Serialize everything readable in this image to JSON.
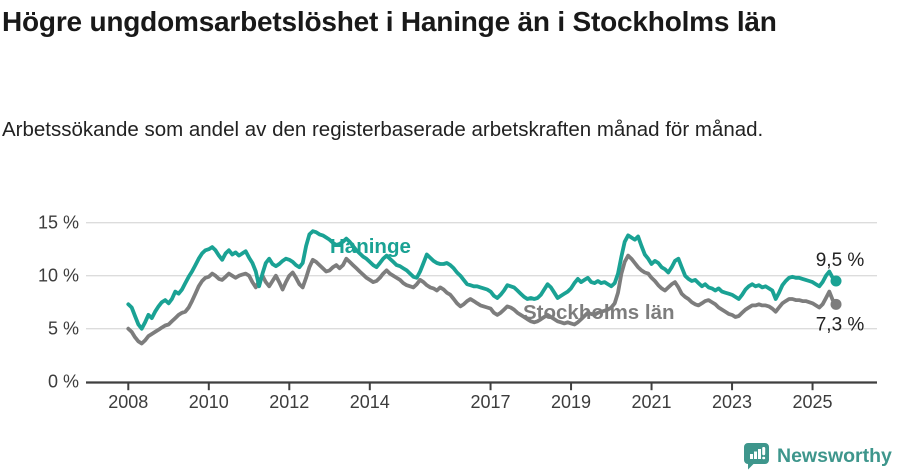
{
  "header": {
    "title": "Högre ungdomsarbetslöshet i Haninge än i Stockholms län",
    "subtitle": "Arbetssökande som andel av den registerbaserade arbetskraften månad för månad."
  },
  "chart_data": {
    "type": "line",
    "title": "Högre ungdomsarbetslöshet i Haninge än i Stockholms län",
    "xlabel": "",
    "ylabel": "",
    "unit": "%",
    "x_start_year": 2008,
    "x_step_months": 1,
    "ylim": [
      0,
      16
    ],
    "grid": true,
    "y_ticks": [
      {
        "label": "0 %",
        "value": 0
      },
      {
        "label": "5 %",
        "value": 5
      },
      {
        "label": "10 %",
        "value": 10
      },
      {
        "label": "15 %",
        "value": 15
      }
    ],
    "x_ticks": [
      {
        "label": "2008",
        "year": 2008
      },
      {
        "label": "2010",
        "year": 2010
      },
      {
        "label": "2012",
        "year": 2012
      },
      {
        "label": "2014",
        "year": 2014
      },
      {
        "label": "2017",
        "year": 2017
      },
      {
        "label": "2019",
        "year": 2019
      },
      {
        "label": "2021",
        "year": 2021
      },
      {
        "label": "2023",
        "year": 2023
      },
      {
        "label": "2025",
        "year": 2025
      }
    ],
    "series": [
      {
        "name": "Haninge",
        "color": "#1aa294",
        "end_label": "9,5 %",
        "end_value": 9.5,
        "values": [
          7.3,
          7.0,
          6.2,
          5.4,
          5.0,
          5.6,
          6.3,
          6.0,
          6.6,
          7.1,
          7.5,
          7.7,
          7.4,
          7.8,
          8.5,
          8.3,
          8.7,
          9.3,
          9.9,
          10.4,
          11.0,
          11.6,
          12.1,
          12.4,
          12.5,
          12.7,
          12.4,
          11.9,
          11.5,
          12.1,
          12.4,
          12.0,
          12.2,
          11.9,
          12.1,
          12.3,
          11.7,
          11.2,
          10.4,
          9.0,
          10.2,
          11.2,
          11.6,
          11.1,
          10.9,
          11.1,
          11.4,
          11.6,
          11.5,
          11.3,
          11.0,
          10.8,
          11.2,
          12.8,
          13.9,
          14.2,
          14.1,
          13.9,
          13.8,
          13.6,
          13.4,
          13.1,
          12.9,
          13.0,
          13.2,
          13.5,
          13.2,
          12.8,
          12.4,
          12.1,
          11.8,
          11.6,
          11.3,
          11.0,
          10.8,
          11.2,
          11.6,
          11.9,
          11.6,
          11.3,
          11.0,
          10.9,
          10.7,
          10.5,
          10.2,
          9.9,
          9.8,
          10.4,
          11.2,
          12.0,
          11.7,
          11.4,
          11.2,
          11.1,
          11.1,
          11.2,
          11.0,
          10.7,
          10.3,
          10.0,
          9.6,
          9.2,
          9.1,
          9.0,
          9.0,
          8.9,
          8.8,
          8.7,
          8.5,
          8.1,
          7.9,
          8.2,
          8.6,
          9.1,
          9.0,
          8.9,
          8.6,
          8.3,
          8.0,
          7.8,
          7.9,
          7.8,
          7.9,
          8.2,
          8.7,
          9.2,
          8.9,
          8.4,
          7.9,
          8.1,
          8.3,
          8.5,
          8.8,
          9.3,
          9.7,
          9.4,
          9.6,
          9.8,
          9.4,
          9.3,
          9.5,
          9.3,
          9.4,
          9.2,
          9.0,
          9.3,
          10.2,
          11.8,
          13.2,
          13.8,
          13.6,
          13.4,
          13.7,
          12.8,
          12.0,
          11.6,
          11.1,
          11.4,
          11.2,
          10.8,
          10.6,
          10.3,
          10.8,
          11.4,
          11.6,
          10.8,
          10.0,
          9.7,
          9.5,
          9.6,
          9.3,
          9.0,
          9.2,
          8.9,
          8.8,
          8.6,
          8.8,
          8.5,
          8.4,
          8.3,
          8.2,
          8.0,
          7.8,
          8.2,
          8.7,
          9.0,
          9.2,
          9.0,
          9.1,
          8.9,
          9.0,
          8.8,
          8.6,
          7.8,
          8.4,
          9.1,
          9.5,
          9.8,
          9.9,
          9.8,
          9.8,
          9.7,
          9.6,
          9.5,
          9.4,
          9.2,
          9.0,
          9.4,
          10.0,
          10.4,
          9.8,
          9.5
        ]
      },
      {
        "name": "Stockholms län",
        "color": "#7d7d7d",
        "end_label": "7,3 %",
        "end_value": 7.3,
        "values": [
          5.0,
          4.7,
          4.2,
          3.8,
          3.6,
          3.9,
          4.3,
          4.5,
          4.7,
          4.9,
          5.1,
          5.3,
          5.4,
          5.7,
          6.0,
          6.3,
          6.5,
          6.6,
          7.0,
          7.6,
          8.3,
          9.0,
          9.5,
          9.8,
          9.9,
          10.2,
          10.0,
          9.7,
          9.6,
          9.9,
          10.2,
          10.0,
          9.8,
          10.0,
          10.1,
          10.2,
          10.0,
          9.4,
          8.9,
          9.5,
          10.0,
          9.4,
          9.0,
          9.5,
          10.0,
          9.4,
          8.7,
          9.4,
          10.0,
          10.3,
          9.8,
          9.2,
          8.9,
          9.8,
          10.8,
          11.5,
          11.3,
          11.0,
          10.7,
          10.4,
          10.5,
          10.8,
          11.0,
          10.7,
          11.0,
          11.6,
          11.3,
          11.0,
          10.7,
          10.4,
          10.1,
          9.8,
          9.6,
          9.4,
          9.5,
          9.8,
          10.2,
          10.5,
          10.2,
          10.0,
          9.8,
          9.6,
          9.3,
          9.1,
          9.0,
          8.9,
          9.2,
          9.6,
          9.4,
          9.1,
          8.9,
          8.8,
          8.6,
          8.9,
          8.7,
          8.4,
          8.2,
          7.8,
          7.4,
          7.1,
          7.3,
          7.6,
          7.8,
          7.6,
          7.4,
          7.2,
          7.1,
          7.0,
          6.9,
          6.5,
          6.3,
          6.5,
          6.8,
          7.1,
          7.0,
          6.8,
          6.5,
          6.3,
          6.1,
          5.9,
          5.7,
          5.6,
          5.7,
          5.9,
          6.1,
          6.3,
          6.1,
          5.9,
          5.7,
          5.6,
          5.5,
          5.6,
          5.5,
          5.4,
          5.6,
          5.9,
          6.2,
          6.5,
          6.4,
          6.3,
          6.5,
          6.6,
          6.7,
          6.8,
          7.0,
          7.4,
          8.4,
          10.2,
          11.3,
          11.9,
          11.6,
          11.2,
          10.8,
          10.5,
          10.3,
          10.2,
          9.8,
          9.5,
          9.1,
          8.8,
          8.6,
          8.9,
          9.2,
          9.4,
          8.9,
          8.3,
          8.0,
          7.8,
          7.5,
          7.3,
          7.2,
          7.4,
          7.6,
          7.7,
          7.5,
          7.3,
          7.0,
          6.8,
          6.6,
          6.4,
          6.3,
          6.1,
          6.2,
          6.5,
          6.8,
          7.0,
          7.2,
          7.2,
          7.3,
          7.2,
          7.2,
          7.1,
          6.9,
          6.6,
          7.0,
          7.4,
          7.6,
          7.8,
          7.8,
          7.7,
          7.7,
          7.6,
          7.6,
          7.5,
          7.4,
          7.2,
          7.0,
          7.3,
          7.9,
          8.5,
          7.7,
          7.3
        ]
      }
    ]
  },
  "footer": {
    "brand": "Newsworthy"
  },
  "colors": {
    "accent_teal": "#1aa294",
    "series_gray": "#7d7d7d",
    "brand_teal": "#3e968c",
    "grid": "#dcdcdc",
    "axis": "#3f3f3f",
    "text_dark": "#191919"
  }
}
